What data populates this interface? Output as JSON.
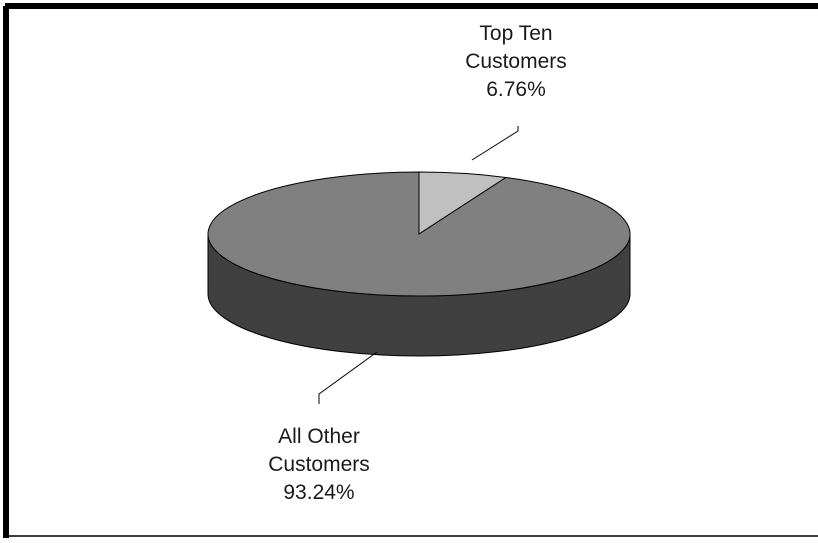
{
  "chart_data": {
    "type": "pie",
    "style": "3d",
    "slices": [
      {
        "label_lines": [
          "Top Ten",
          "Customers"
        ],
        "percent_label": "6.76%",
        "value": 6.76,
        "color": "#c0c0c0",
        "side_color": "#9a9a9a"
      },
      {
        "label_lines": [
          "All Other",
          "Customers"
        ],
        "percent_label": "93.24%",
        "value": 93.24,
        "color": "#808080",
        "side_color": "#404040"
      }
    ],
    "legend": "none"
  }
}
